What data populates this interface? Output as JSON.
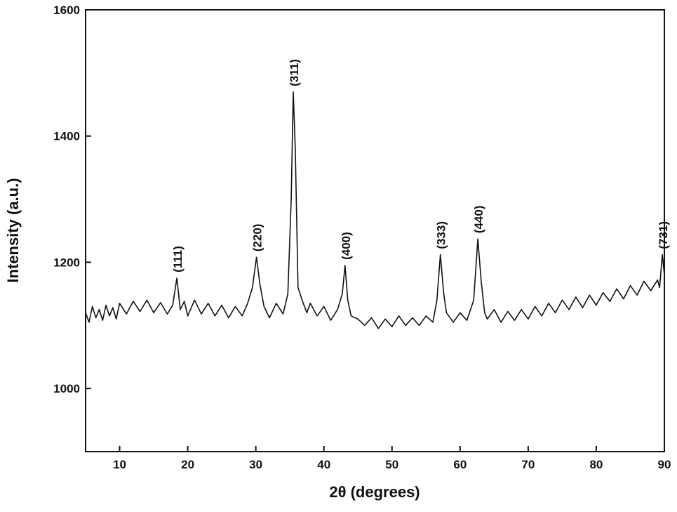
{
  "chart_data": {
    "type": "line",
    "xlabel": "2θ (degrees)",
    "ylabel": "Intensity (a.u.)",
    "xlim": [
      5,
      90
    ],
    "ylim": [
      900,
      1600
    ],
    "xticks": [
      10,
      20,
      30,
      40,
      50,
      60,
      70,
      80,
      90
    ],
    "yticks": [
      1000,
      1200,
      1400,
      1600
    ],
    "grid": false,
    "series": [
      {
        "color": "#111111",
        "x": [
          5,
          5.5,
          6,
          6.5,
          7,
          7.5,
          8,
          8.5,
          9,
          9.5,
          10,
          11,
          12,
          13,
          14,
          15,
          16,
          17,
          17.8,
          18.4,
          18.9,
          19.5,
          20,
          21,
          22,
          23,
          24,
          25,
          26,
          27,
          28,
          28.8,
          29.5,
          30.1,
          30.6,
          31.2,
          32,
          33,
          34,
          34.7,
          35.2,
          35.5,
          35.8,
          36.2,
          36.8,
          37.5,
          38,
          39,
          40,
          41,
          42,
          42.7,
          43.1,
          43.5,
          44,
          45,
          46,
          47,
          48,
          49,
          50,
          51,
          52,
          53,
          54,
          55,
          56,
          56.6,
          57.1,
          57.6,
          58,
          59,
          60,
          61,
          62,
          62.6,
          63.1,
          63.6,
          64,
          65,
          66,
          67,
          68,
          69,
          70,
          71,
          72,
          73,
          74,
          75,
          76,
          77,
          78,
          79,
          80,
          81,
          82,
          83,
          84,
          85,
          86,
          87,
          88,
          89,
          89.3,
          89.7,
          90
        ],
        "values": [
          1120,
          1105,
          1130,
          1112,
          1125,
          1108,
          1132,
          1115,
          1128,
          1110,
          1135,
          1118,
          1138,
          1122,
          1140,
          1120,
          1136,
          1118,
          1132,
          1175,
          1125,
          1138,
          1115,
          1140,
          1118,
          1135,
          1115,
          1132,
          1112,
          1130,
          1115,
          1135,
          1160,
          1208,
          1165,
          1130,
          1112,
          1135,
          1118,
          1150,
          1300,
          1470,
          1380,
          1160,
          1140,
          1120,
          1135,
          1115,
          1130,
          1108,
          1125,
          1150,
          1195,
          1140,
          1115,
          1110,
          1100,
          1112,
          1095,
          1110,
          1098,
          1115,
          1100,
          1112,
          1100,
          1115,
          1105,
          1140,
          1212,
          1150,
          1120,
          1105,
          1120,
          1108,
          1140,
          1237,
          1170,
          1120,
          1110,
          1125,
          1105,
          1122,
          1108,
          1125,
          1110,
          1130,
          1115,
          1135,
          1120,
          1140,
          1125,
          1145,
          1128,
          1148,
          1132,
          1152,
          1138,
          1158,
          1142,
          1163,
          1148,
          1170,
          1155,
          1172,
          1160,
          1212,
          1180
        ]
      }
    ],
    "annotations": [
      {
        "text": "(111)",
        "x": 18.4,
        "y": 1175
      },
      {
        "text": "(220)",
        "x": 30.1,
        "y": 1208
      },
      {
        "text": "(311)",
        "x": 35.5,
        "y": 1470
      },
      {
        "text": "(400)",
        "x": 43.1,
        "y": 1195
      },
      {
        "text": "(333)",
        "x": 57.1,
        "y": 1212
      },
      {
        "text": "(440)",
        "x": 62.6,
        "y": 1237
      },
      {
        "text": "(731)",
        "x": 89.7,
        "y": 1212
      }
    ]
  }
}
